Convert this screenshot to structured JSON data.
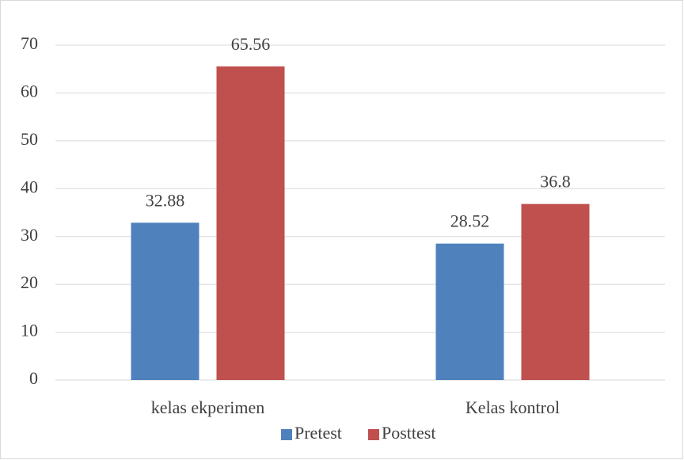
{
  "chart_data": {
    "type": "bar",
    "categories": [
      "kelas ekperimen",
      "Kelas kontrol"
    ],
    "series": [
      {
        "name": "Pretest",
        "color": "#4f81bd",
        "values": [
          32.88,
          28.52
        ]
      },
      {
        "name": "Posttest",
        "color": "#c0504d",
        "values": [
          65.56,
          36.8
        ]
      }
    ],
    "ylim": [
      0,
      70
    ],
    "yticks": [
      0,
      10,
      20,
      30,
      40,
      50,
      60,
      70
    ],
    "grid": true,
    "legend": "bottom",
    "data_labels": true
  }
}
